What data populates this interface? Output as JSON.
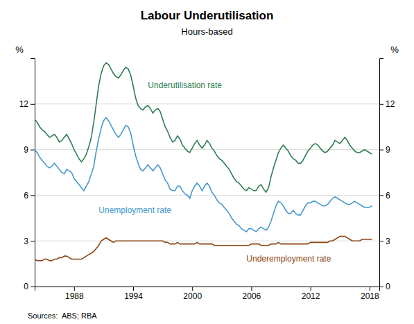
{
  "chart_data": {
    "type": "line",
    "title": "Labour Underutilisation",
    "subtitle": "Hours-based",
    "source": "Sources:  ABS; RBA",
    "ylabel": "%",
    "y2label": "%",
    "xlim": [
      1984,
      2019
    ],
    "xticks": [
      1988,
      1994,
      2000,
      2006,
      2012,
      2018
    ],
    "ylim": [
      0,
      15
    ],
    "yticks": [
      0,
      3,
      6,
      9,
      12
    ],
    "y2lim": [
      0,
      15
    ],
    "y2ticks": [
      0,
      3,
      6,
      9,
      12
    ],
    "grid": true,
    "x": [
      1984.0,
      1984.25,
      1984.5,
      1984.75,
      1985.0,
      1985.25,
      1985.5,
      1985.75,
      1986.0,
      1986.25,
      1986.5,
      1986.75,
      1987.0,
      1987.25,
      1987.5,
      1987.75,
      1988.0,
      1988.25,
      1988.5,
      1988.75,
      1989.0,
      1989.25,
      1989.5,
      1989.75,
      1990.0,
      1990.25,
      1990.5,
      1990.75,
      1991.0,
      1991.25,
      1991.5,
      1991.75,
      1992.0,
      1992.25,
      1992.5,
      1992.75,
      1993.0,
      1993.25,
      1993.5,
      1993.75,
      1994.0,
      1994.25,
      1994.5,
      1994.75,
      1995.0,
      1995.25,
      1995.5,
      1995.75,
      1996.0,
      1996.25,
      1996.5,
      1996.75,
      1997.0,
      1997.25,
      1997.5,
      1997.75,
      1998.0,
      1998.25,
      1998.5,
      1998.75,
      1999.0,
      1999.25,
      1999.5,
      1999.75,
      2000.0,
      2000.25,
      2000.5,
      2000.75,
      2001.0,
      2001.25,
      2001.5,
      2001.75,
      2002.0,
      2002.25,
      2002.5,
      2002.75,
      2003.0,
      2003.25,
      2003.5,
      2003.75,
      2004.0,
      2004.25,
      2004.5,
      2004.75,
      2005.0,
      2005.25,
      2005.5,
      2005.75,
      2006.0,
      2006.25,
      2006.5,
      2006.75,
      2007.0,
      2007.25,
      2007.5,
      2007.75,
      2008.0,
      2008.25,
      2008.5,
      2008.75,
      2009.0,
      2009.25,
      2009.5,
      2009.75,
      2010.0,
      2010.25,
      2010.5,
      2010.75,
      2011.0,
      2011.25,
      2011.5,
      2011.75,
      2012.0,
      2012.25,
      2012.5,
      2012.75,
      2013.0,
      2013.25,
      2013.5,
      2013.75,
      2014.0,
      2014.25,
      2014.5,
      2014.75,
      2015.0,
      2015.25,
      2015.5,
      2015.75,
      2016.0,
      2016.25,
      2016.5,
      2016.75,
      2017.0,
      2017.25,
      2017.5,
      2017.75,
      2018.0,
      2018.25
    ],
    "series": [
      {
        "color": "#2e7d52",
        "values": [
          11.0,
          10.8,
          10.5,
          10.3,
          10.2,
          10.0,
          9.8,
          9.9,
          10.0,
          9.8,
          9.5,
          9.6,
          9.8,
          10.0,
          9.7,
          9.4,
          9.0,
          8.7,
          8.4,
          8.2,
          8.4,
          8.7,
          9.2,
          9.8,
          10.8,
          12.0,
          13.2,
          14.0,
          14.5,
          14.7,
          14.6,
          14.3,
          14.0,
          13.8,
          13.7,
          13.9,
          14.2,
          14.4,
          14.3,
          13.9,
          13.2,
          12.4,
          11.9,
          11.7,
          11.6,
          11.8,
          11.9,
          11.7,
          11.4,
          11.6,
          11.7,
          11.5,
          11.0,
          10.5,
          10.2,
          9.8,
          9.5,
          9.6,
          9.9,
          9.7,
          9.3,
          9.1,
          8.9,
          8.8,
          9.1,
          9.4,
          9.6,
          9.3,
          9.1,
          9.3,
          9.6,
          9.4,
          9.1,
          8.9,
          8.6,
          8.4,
          8.3,
          8.1,
          7.9,
          7.7,
          7.4,
          7.1,
          6.9,
          6.8,
          6.6,
          6.4,
          6.3,
          6.5,
          6.4,
          6.3,
          6.3,
          6.6,
          6.7,
          6.4,
          6.2,
          6.5,
          7.2,
          7.8,
          8.3,
          8.8,
          9.1,
          9.3,
          9.1,
          8.9,
          8.6,
          8.4,
          8.3,
          8.1,
          8.1,
          8.3,
          8.6,
          8.9,
          9.1,
          9.3,
          9.4,
          9.3,
          9.1,
          8.9,
          8.8,
          8.9,
          9.1,
          9.3,
          9.6,
          9.5,
          9.4,
          9.6,
          9.8,
          9.6,
          9.3,
          9.1,
          8.9,
          8.8,
          8.8,
          8.9,
          9.0,
          8.9,
          8.8,
          8.7
        ]
      },
      {
        "color": "#4499cc",
        "values": [
          9.0,
          8.8,
          8.5,
          8.3,
          8.1,
          7.9,
          7.8,
          7.9,
          8.1,
          7.9,
          7.7,
          7.5,
          7.4,
          7.7,
          7.6,
          7.5,
          7.1,
          6.9,
          6.7,
          6.5,
          6.3,
          6.6,
          6.9,
          7.4,
          7.9,
          8.9,
          9.7,
          10.4,
          10.9,
          11.1,
          10.9,
          10.6,
          10.3,
          10.0,
          9.8,
          10.0,
          10.3,
          10.6,
          10.5,
          10.1,
          9.3,
          8.6,
          8.1,
          7.7,
          7.6,
          7.8,
          8.0,
          7.8,
          7.6,
          7.8,
          8.0,
          7.8,
          7.4,
          7.0,
          6.8,
          6.4,
          6.3,
          6.3,
          6.6,
          6.6,
          6.3,
          6.1,
          6.0,
          5.8,
          6.3,
          6.6,
          6.8,
          6.6,
          6.3,
          6.6,
          6.8,
          6.6,
          6.2,
          6.0,
          5.7,
          5.5,
          5.4,
          5.2,
          5.0,
          4.8,
          4.5,
          4.3,
          4.1,
          4.0,
          3.8,
          3.7,
          3.6,
          3.8,
          3.8,
          3.7,
          3.6,
          3.8,
          3.9,
          3.8,
          3.7,
          3.9,
          4.3,
          4.8,
          5.3,
          5.6,
          5.5,
          5.3,
          5.0,
          4.8,
          4.8,
          5.0,
          4.8,
          4.7,
          4.7,
          5.0,
          5.3,
          5.5,
          5.5,
          5.6,
          5.6,
          5.5,
          5.4,
          5.3,
          5.3,
          5.4,
          5.6,
          5.8,
          5.9,
          5.8,
          5.7,
          5.6,
          5.5,
          5.4,
          5.4,
          5.5,
          5.6,
          5.5,
          5.4,
          5.3,
          5.2,
          5.2,
          5.2,
          5.3
        ]
      },
      {
        "color": "#8b4513",
        "values": [
          1.8,
          1.7,
          1.7,
          1.7,
          1.8,
          1.8,
          1.7,
          1.7,
          1.8,
          1.8,
          1.9,
          1.9,
          2.0,
          2.0,
          1.9,
          1.8,
          1.8,
          1.8,
          1.8,
          1.8,
          1.9,
          2.0,
          2.1,
          2.2,
          2.3,
          2.5,
          2.7,
          3.0,
          3.1,
          3.2,
          3.1,
          3.0,
          2.9,
          3.0,
          3.0,
          3.0,
          3.0,
          3.0,
          3.0,
          3.0,
          3.0,
          3.0,
          3.0,
          3.0,
          3.0,
          3.0,
          3.0,
          3.0,
          3.0,
          3.0,
          3.0,
          3.0,
          3.0,
          2.9,
          2.9,
          2.8,
          2.8,
          2.8,
          2.9,
          2.8,
          2.8,
          2.8,
          2.8,
          2.8,
          2.8,
          2.8,
          2.9,
          2.8,
          2.8,
          2.8,
          2.8,
          2.8,
          2.8,
          2.7,
          2.7,
          2.7,
          2.7,
          2.7,
          2.7,
          2.7,
          2.7,
          2.7,
          2.7,
          2.7,
          2.7,
          2.7,
          2.7,
          2.7,
          2.8,
          2.8,
          2.8,
          2.8,
          2.7,
          2.7,
          2.7,
          2.7,
          2.8,
          2.8,
          2.8,
          2.9,
          2.8,
          2.8,
          2.8,
          2.8,
          2.8,
          2.8,
          2.8,
          2.8,
          2.8,
          2.8,
          2.8,
          2.8,
          2.9,
          2.9,
          2.9,
          2.9,
          2.9,
          2.9,
          2.9,
          2.9,
          3.0,
          3.0,
          3.1,
          3.2,
          3.3,
          3.3,
          3.3,
          3.2,
          3.1,
          3.0,
          3.0,
          3.0,
          3.0,
          3.1,
          3.1,
          3.1,
          3.1,
          3.1
        ]
      }
    ],
    "annotations": [
      {
        "text": "Underutilisation rate",
        "x": 1995.5,
        "y": 13.2,
        "color": "#2e7d52"
      },
      {
        "text": "Unemployment rate",
        "x": 1990.5,
        "y": 5.0,
        "color": "#4499cc"
      },
      {
        "text": "Underemployment rate",
        "x": 2005.5,
        "y": 1.8,
        "color": "#8b4513"
      }
    ]
  }
}
